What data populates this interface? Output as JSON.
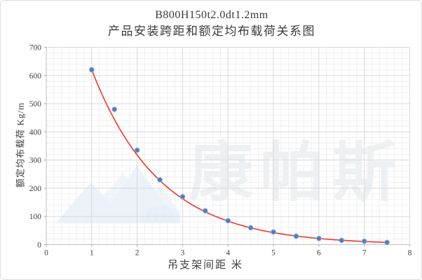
{
  "title": {
    "line1": "B800H150t2.0dt1.2mm",
    "line2": "产品安装跨距和额定均布载荷关系图"
  },
  "axes": {
    "x_title": "吊支架间距  米",
    "y_title": "额定均布载荷 Kg/m",
    "x_ticks": [
      0,
      1,
      2,
      3,
      4,
      5,
      6,
      7,
      8
    ],
    "y_ticks": [
      0,
      100,
      200,
      300,
      400,
      500,
      600,
      700
    ]
  },
  "watermark": {
    "text": "康帕斯",
    "logo": "mountain-logo"
  },
  "colors": {
    "point": "#4d7ec0",
    "point_edge": "#86a8d8",
    "trend": "#ed372e",
    "grid_major": "#d9d9d9",
    "grid_minor": "#f0f0f0",
    "axis_line": "#bfbfbf",
    "tick_mark": "#a6a6a6",
    "tick_text": "#404040"
  },
  "chart_data": {
    "type": "scatter",
    "title": "B800H150t2.0dt1.2mm 产品安装跨距和额定均布载荷关系图",
    "xlabel": "吊支架间距 米",
    "ylabel": "额定均布载荷 Kg/m",
    "xlim": [
      0,
      8
    ],
    "ylim": [
      0,
      700
    ],
    "x_major_unit": 1,
    "y_major_unit": 100,
    "x_minor_divisions": 6,
    "y_minor_unit": 20,
    "grid": true,
    "legend": false,
    "x": [
      1,
      1.5,
      2,
      2.5,
      3,
      3.5,
      4,
      4.5,
      5,
      5.5,
      6,
      6.5,
      7,
      7.5
    ],
    "y": [
      620,
      480,
      335,
      230,
      170,
      120,
      85,
      60,
      45,
      30,
      22,
      15,
      12,
      8
    ],
    "trendline": {
      "type": "exponential",
      "a": 1211,
      "b": 0.669,
      "x_start": 1,
      "x_end": 7.5
    }
  }
}
